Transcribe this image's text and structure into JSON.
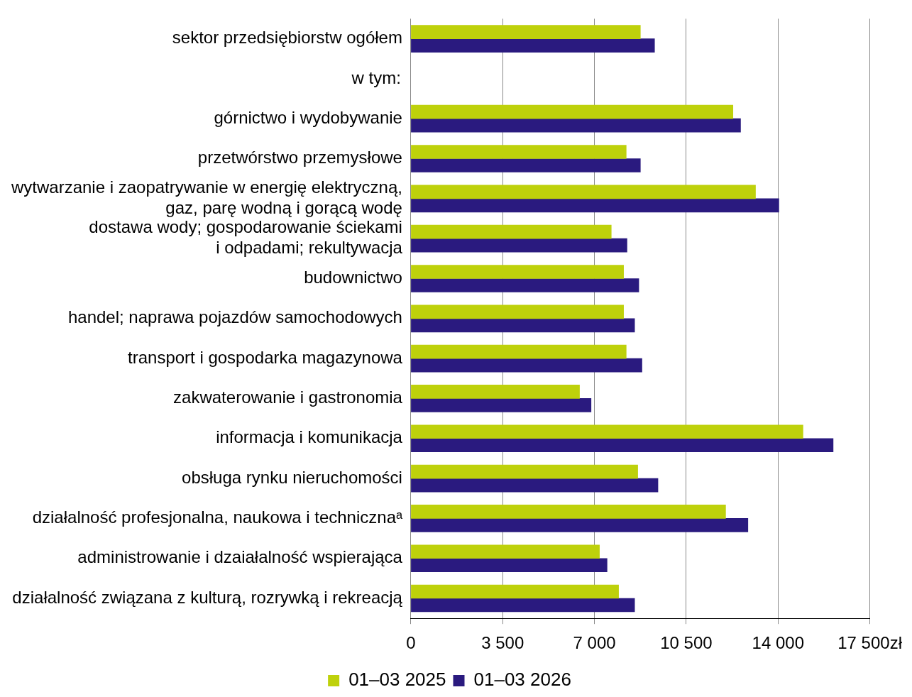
{
  "chart_data": {
    "type": "bar",
    "orientation": "horizontal",
    "categories": [
      "sektor przedsiębiorstw ogółem",
      null,
      "górnictwo i wydobywanie",
      "przetwórstwo przemysłowe",
      "wytwarzanie i zaopatrywanie w energię elektryczną,\ngaz, parę wodną i gorącą wodę",
      "dostawa wody; gospodarowanie ściekami\ni odpadami; rekultywacja",
      "budownictwo",
      "handel; naprawa pojazdów samochodowych",
      "transport i gospodarka magazynowa",
      "zakwaterowanie i gastronomia",
      "informacja i komunikacja",
      "obsługa rynku nieruchomości",
      "działalność profesjonalna, naukowa i technicznaᵃ",
      "administrowanie i dzaiałalność wspierająca",
      "działalność związana z kulturą, rozrywką i rekreacją"
    ],
    "series": [
      {
        "name": "01–03 2025",
        "color": "#bed10b",
        "values": [
          8750,
          null,
          12280,
          8210,
          13140,
          7640,
          8110,
          8110,
          8210,
          6430,
          14950,
          8650,
          12000,
          7190,
          7920
        ]
      },
      {
        "name": "01–03 2026",
        "color": "#2a1a7f",
        "values": [
          9290,
          null,
          12570,
          8750,
          14030,
          8240,
          8690,
          8530,
          8810,
          6870,
          16100,
          9420,
          12850,
          7480,
          8530
        ]
      }
    ],
    "xlim": [
      0,
      17500
    ],
    "xticks": [
      0,
      {
        "value": 3500,
        "label": "3 500"
      },
      {
        "value": 7000,
        "label": "7 000"
      },
      {
        "value": 10500,
        "label": "10 500"
      },
      {
        "value": 14000,
        "label": "14 000"
      },
      {
        "value": 17500,
        "label": "17 500zł"
      }
    ],
    "grid": "x",
    "legend": "bottom",
    "annotations": [
      "w tym:"
    ]
  }
}
